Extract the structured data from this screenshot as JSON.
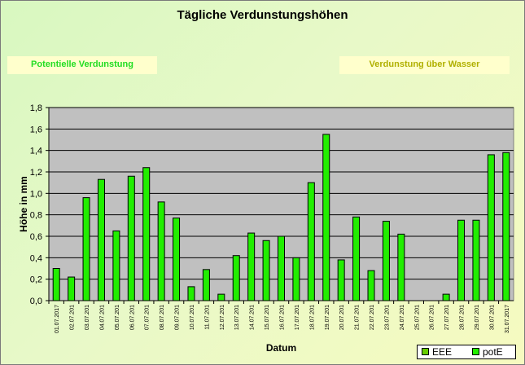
{
  "colors": {
    "bar_potE": "#22ee00",
    "bar_EEE": "#66cc00",
    "plot_bg": "#c0c0c0",
    "annotation_left": "#22dd22",
    "annotation_right": "#b0b000"
  },
  "chart_data": {
    "type": "bar",
    "title": "Tägliche Verdunstungshöhen",
    "xlabel": "Datum",
    "ylabel": "Höhe in mm",
    "ylim": [
      0,
      1.8
    ],
    "yticks": [
      "0,0",
      "0,2",
      "0,4",
      "0,6",
      "0,8",
      "1,0",
      "1,2",
      "1,4",
      "1,6",
      "1,8"
    ],
    "grid": true,
    "legend_position": "bottom-right",
    "annotations": [
      "Potentielle Verdunstung",
      "Verdunstung über Wasser"
    ],
    "categories": [
      "01.07.2017",
      "02.07.201",
      "03.07.201",
      "04.07.201",
      "05.07.201",
      "06.07.201",
      "07.07.201",
      "08.07.201",
      "09.07.201",
      "10.07.201",
      "11.07.201",
      "12.07.201",
      "13.07.201",
      "14.07.201",
      "15.07.201",
      "16.07.201",
      "17.07.201",
      "18.07.201",
      "19.07.201",
      "20.07.201",
      "21.07.201",
      "22.07.201",
      "23.07.201",
      "24.07.201",
      "25.07.201",
      "26.07.201",
      "27.07.201",
      "28.07.201",
      "29.07.201",
      "30.07.201",
      "31.07.2017"
    ],
    "series": [
      {
        "name": "EEE",
        "values": [
          0,
          0,
          0,
          0,
          0,
          0,
          0,
          0,
          0,
          0,
          0,
          0,
          0,
          0,
          0,
          0,
          0,
          0,
          0,
          0,
          0,
          0,
          0,
          0,
          0,
          0,
          0,
          0,
          0,
          0,
          0
        ]
      },
      {
        "name": "potE",
        "values": [
          0.3,
          0.22,
          0.96,
          1.13,
          0.65,
          1.16,
          1.24,
          0.92,
          0.77,
          0.13,
          0.29,
          0.06,
          0.42,
          0.63,
          0.56,
          0.6,
          0.4,
          1.1,
          1.55,
          0.38,
          0.78,
          0.28,
          0.74,
          0.62,
          0,
          0,
          0.06,
          0.75,
          0.75,
          1.36,
          1.38
        ]
      }
    ]
  }
}
